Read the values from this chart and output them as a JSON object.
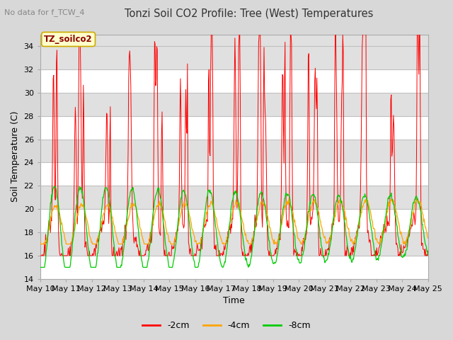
{
  "title": "Tonzi Soil CO2 Profile: Tree (West) Temperatures",
  "subtitle": "No data for f_TCW_4",
  "xlabel": "Time",
  "ylabel": "Soil Temperature (C)",
  "ylim": [
    14,
    35
  ],
  "yticks": [
    14,
    16,
    18,
    20,
    22,
    24,
    26,
    28,
    30,
    32,
    34
  ],
  "bg_color": "#d8d8d8",
  "plot_bg_color": "#e0e0e0",
  "legend_label": "TZ_soilco2",
  "legend_box_color": "#ffffcc",
  "legend_text_color": "#8b0000",
  "series_labels": [
    "-2cm",
    "-4cm",
    "-8cm"
  ],
  "series_colors": [
    "#ff0000",
    "#ffa500",
    "#00cc00"
  ],
  "xtick_labels": [
    "May 10",
    "May 11",
    "May 12",
    "May 13",
    "May 14",
    "May 15",
    "May 16",
    "May 17",
    "May 18",
    "May 19",
    "May 20",
    "May 21",
    "May 22",
    "May 23",
    "May 24",
    "May 25"
  ],
  "n_days": 15,
  "points_per_day": 48
}
